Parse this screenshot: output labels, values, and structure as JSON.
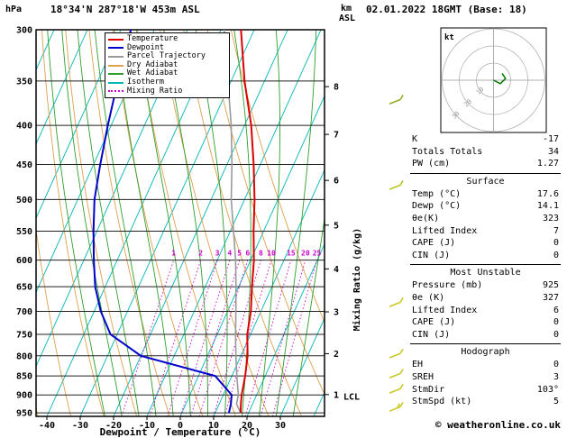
{
  "header": {
    "station": "18°34'N 287°18'W 453m ASL",
    "datetime": "02.01.2022 18GMT (Base: 18)"
  },
  "footer": {
    "copyright": "© weatheronline.co.uk"
  },
  "axes": {
    "pressure_unit": "hPa",
    "altitude_unit_line1": "km",
    "altitude_unit_line2": "ASL",
    "x_label": "Dewpoint / Temperature (°C)",
    "mixing_ratio_axis_label": "Mixing Ratio (g/kg)",
    "lcl_label": "LCL",
    "lcl_pressure": 905,
    "pressure_ticks": [
      300,
      350,
      400,
      450,
      500,
      550,
      600,
      650,
      700,
      750,
      800,
      850,
      900,
      950
    ],
    "temp_ticks": [
      -40,
      -30,
      -20,
      -10,
      0,
      10,
      20,
      30
    ],
    "km_ticks": [
      {
        "km": "8",
        "p": 356
      },
      {
        "km": "7",
        "p": 411
      },
      {
        "km": "6",
        "p": 472
      },
      {
        "km": "5",
        "p": 540
      },
      {
        "km": "4",
        "p": 616
      },
      {
        "km": "3",
        "p": 701
      },
      {
        "km": "2",
        "p": 795
      },
      {
        "km": "1",
        "p": 899
      }
    ]
  },
  "legend": {
    "items": [
      {
        "label": "Temperature",
        "color": "#dd0000",
        "dash": ""
      },
      {
        "label": "Dewpoint",
        "color": "#0000cc",
        "dash": ""
      },
      {
        "label": "Parcel Trajectory",
        "color": "#9a9a9a",
        "dash": ""
      },
      {
        "label": "Dry Adiabat",
        "color": "#dfa04f",
        "dash": ""
      },
      {
        "label": "Wet Adiabat",
        "color": "#2f9e2f",
        "dash": ""
      },
      {
        "label": "Isotherm",
        "color": "#00b6b6",
        "dash": ""
      },
      {
        "label": "Mixing Ratio",
        "color": "#cf00cf",
        "dash": "dotted"
      }
    ]
  },
  "chart_data": {
    "type": "line",
    "title": "Skew-T log-P sounding",
    "x_axis": {
      "label": "Dewpoint / Temperature (°C)",
      "min": -45,
      "max": 40
    },
    "y_axis": {
      "label": "hPa",
      "min": 300,
      "max": 960,
      "scale": "log"
    },
    "colors": {
      "temperature": "#dd0000",
      "dewpoint": "#0000cc",
      "parcel": "#9a9a9a",
      "dry_adiabat": "#dfa04f",
      "wet_adiabat": "#2f9e2f",
      "isotherm": "#00b6b6",
      "mixing_ratio": "#cf00cf",
      "isobar": "#222222"
    },
    "isotherms": {
      "min": -130,
      "max": 40,
      "step": 10
    },
    "dry_adiabats_c": [
      -60,
      -50,
      -40,
      -30,
      -20,
      -10,
      0,
      10,
      20,
      30,
      40,
      50,
      60
    ],
    "wet_adiabats_c": [
      -20,
      -15,
      -10,
      -5,
      0,
      5,
      10,
      15,
      20,
      25,
      30,
      35
    ],
    "mixing_ratio_lines": [
      1,
      2,
      3,
      4,
      5,
      6,
      8,
      10,
      15,
      20,
      25
    ],
    "sounding": {
      "pressure": [
        950,
        925,
        900,
        850,
        800,
        750,
        700,
        650,
        600,
        550,
        500,
        450,
        400,
        350,
        300
      ],
      "temperature": [
        17.6,
        16.5,
        15.5,
        14,
        12,
        9,
        7,
        4,
        1,
        -3,
        -7,
        -12,
        -18,
        -26,
        -34
      ],
      "dewpoint": [
        14.1,
        13.5,
        12.5,
        5,
        -20,
        -32,
        -38,
        -43,
        -47,
        -51,
        -55,
        -58,
        -61,
        -64,
        -67
      ],
      "parcel": [
        17.6,
        15.2,
        14.5,
        11.5,
        8.5,
        5.5,
        2.5,
        -0.8,
        -4.5,
        -9,
        -14,
        -18.5,
        -24,
        -31,
        -39
      ]
    },
    "wind_barbs": [
      {
        "p": 375,
        "color": "#8fae22",
        "ticks": 1
      },
      {
        "p": 485,
        "color": "#b9c322",
        "ticks": 1
      },
      {
        "p": 690,
        "color": "#c9c922",
        "ticks": 1
      },
      {
        "p": 805,
        "color": "#c9c922",
        "ticks": 1
      },
      {
        "p": 855,
        "color": "#c9c922",
        "ticks": 1
      },
      {
        "p": 895,
        "color": "#c9c922",
        "ticks": 1
      },
      {
        "p": 945,
        "color": "#c9c922",
        "ticks": 2
      }
    ]
  },
  "hodograph": {
    "unit_label": "kt",
    "rings_kt": [
      10,
      20,
      30
    ],
    "ring_labels": [
      "10",
      "20",
      "30"
    ],
    "trace_kt": [
      [
        0,
        0
      ],
      [
        4,
        -2
      ],
      [
        7,
        1
      ],
      [
        5,
        4
      ]
    ]
  },
  "panel": {
    "indices": [
      {
        "label": "K",
        "value": "-17"
      },
      {
        "label": "Totals Totals",
        "value": "34"
      },
      {
        "label": "PW (cm)",
        "value": "1.27"
      }
    ],
    "sections": [
      {
        "title": "Surface",
        "rows": [
          {
            "label": "Temp (°C)",
            "value": "17.6"
          },
          {
            "label": "Dewp (°C)",
            "value": "14.1"
          },
          {
            "label": "θe(K)",
            "value": "323"
          },
          {
            "label": "Lifted Index",
            "value": "7"
          },
          {
            "label": "CAPE (J)",
            "value": "0"
          },
          {
            "label": "CIN (J)",
            "value": "0"
          }
        ]
      },
      {
        "title": "Most Unstable",
        "rows": [
          {
            "label": "Pressure (mb)",
            "value": "925"
          },
          {
            "label": "θe (K)",
            "value": "327"
          },
          {
            "label": "Lifted Index",
            "value": "6"
          },
          {
            "label": "CAPE (J)",
            "value": "0"
          },
          {
            "label": "CIN (J)",
            "value": "0"
          }
        ]
      },
      {
        "title": "Hodograph",
        "rows": [
          {
            "label": "EH",
            "value": "0"
          },
          {
            "label": "SREH",
            "value": "3"
          },
          {
            "label": "StmDir",
            "value": "103°"
          },
          {
            "label": "StmSpd (kt)",
            "value": "5"
          }
        ]
      }
    ]
  }
}
